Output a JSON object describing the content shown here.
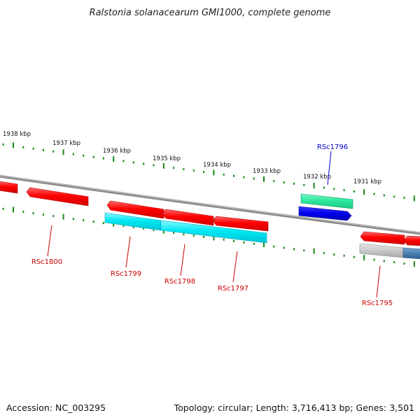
{
  "title": "Ralstonia solanacearum GMI1000, complete genome",
  "accession": "Accession: NC_003295",
  "summary": "Topology: circular; Length: 3,716,413 bp; Genes: 3,501",
  "colors": {
    "backbone": "#7f7f7f",
    "tick": "#138a13",
    "cds_forward": "#ff0000",
    "cds_reverse": "#00e5f2",
    "rna": "#2ee8a0",
    "selected_gene": "#0000ee",
    "other_feature": "#c8c8c8",
    "other_feature_2": "#4a80b0",
    "label_default": "#cc0000",
    "label_selected": "#0000cc"
  },
  "kbp_labels": [
    "1938 kbp",
    "1937 kbp",
    "1936 kbp",
    "1935 kbp",
    "1934 kbp",
    "1933 kbp",
    "1932 kbp",
    "1931 kbp"
  ],
  "gene_labels": [
    {
      "id": "RSc1800",
      "text": "RSc1800",
      "selected": false
    },
    {
      "id": "RSc1799",
      "text": "RSc1799",
      "selected": false
    },
    {
      "id": "RSc1798",
      "text": "RSc1798",
      "selected": false
    },
    {
      "id": "RSc1797",
      "text": "RSc1797",
      "selected": false
    },
    {
      "id": "RSc1796",
      "text": "RSc1796",
      "selected": true
    },
    {
      "id": "RSc1795",
      "text": "RSc1795",
      "selected": false
    }
  ]
}
